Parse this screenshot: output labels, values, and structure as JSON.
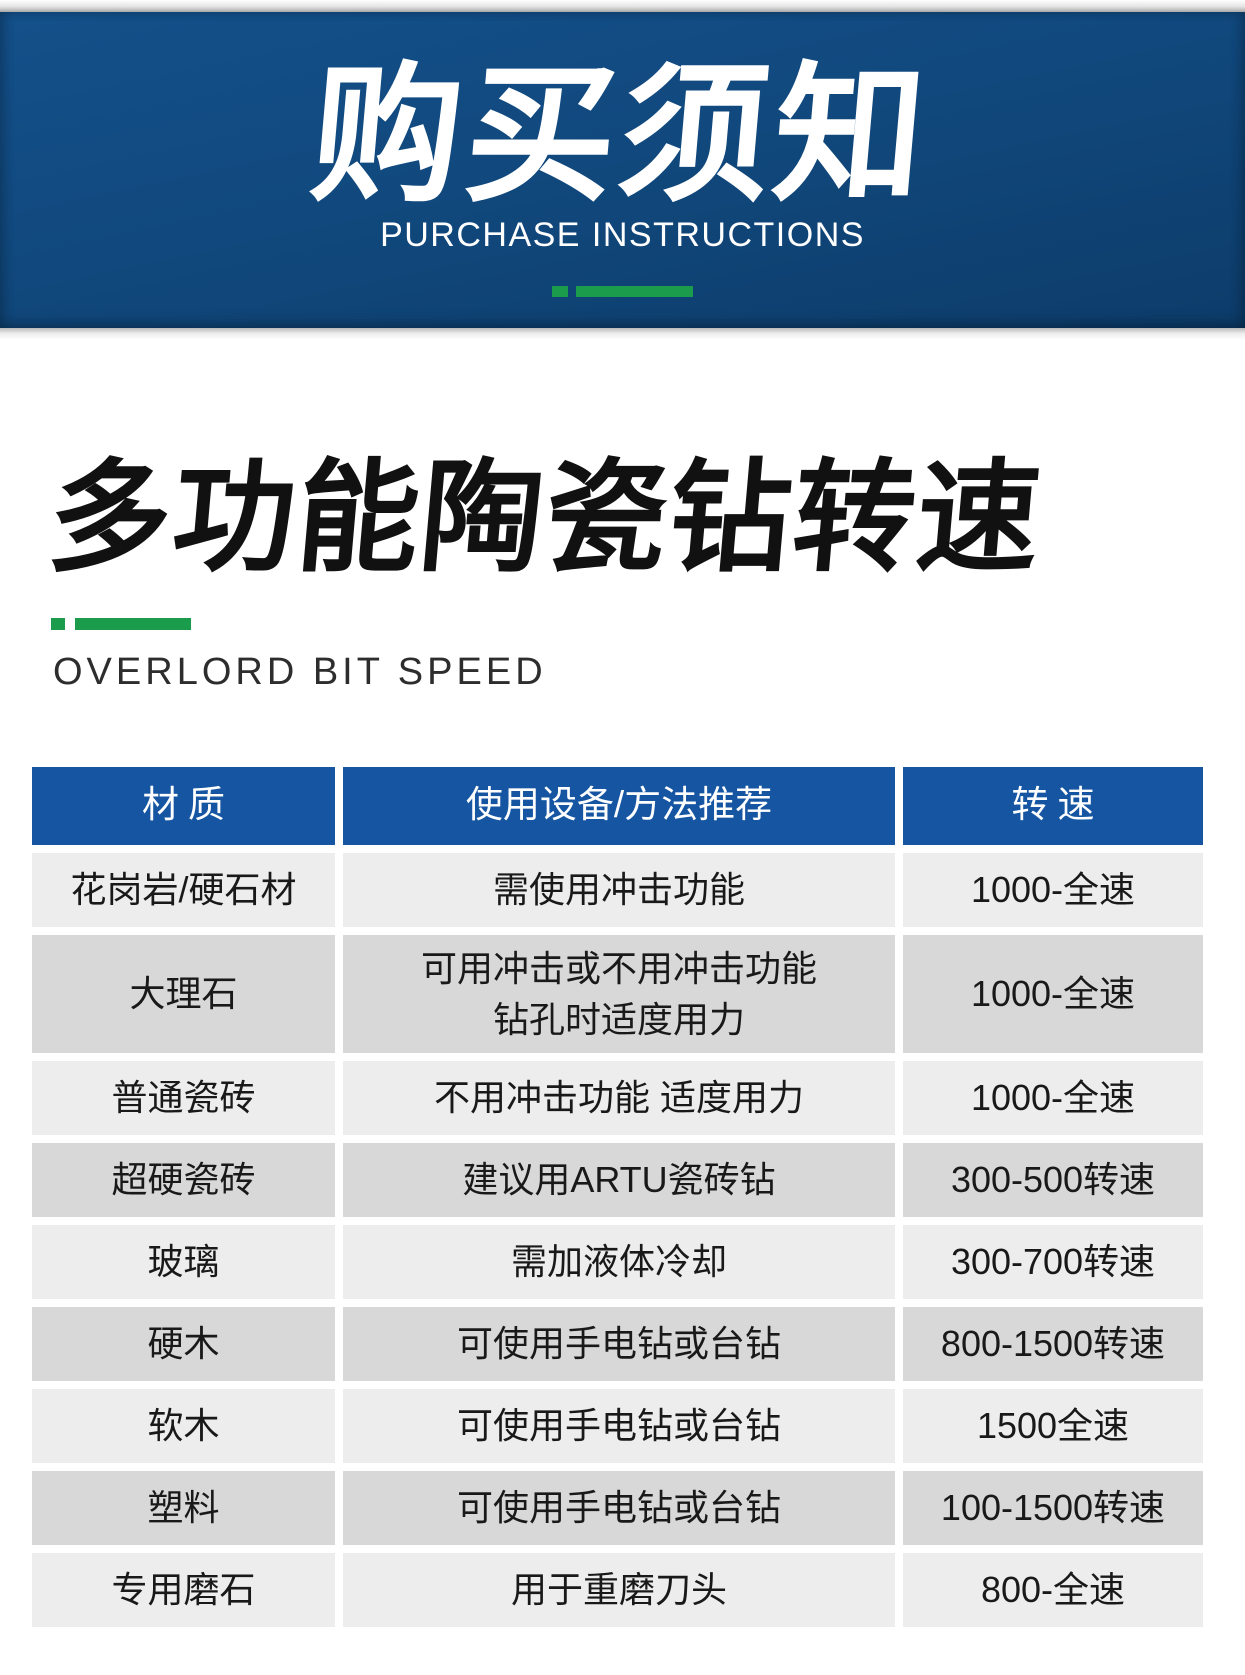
{
  "banner": {
    "title": "购买须知",
    "subtitle": "PURCHASE INSTRUCTIONS"
  },
  "section": {
    "title": "多功能陶瓷钻转速",
    "subtitle": "OVERLORD BIT SPEED"
  },
  "table": {
    "headers": [
      "材质",
      "使用设备/方法推荐",
      "转速"
    ],
    "rows": [
      [
        "花岗岩/硬石材",
        "需使用冲击功能",
        "1000-全速"
      ],
      [
        "大理石",
        "可用冲击或不用冲击功能\n钻孔时适度用力",
        "1000-全速"
      ],
      [
        "普通瓷砖",
        "不用冲击功能 适度用力",
        "1000-全速"
      ],
      [
        "超硬瓷砖",
        "建议用ARTU瓷砖钻",
        "300-500转速"
      ],
      [
        "玻璃",
        "需加液体冷却",
        "300-700转速"
      ],
      [
        "硬木",
        "可使用手电钻或台钻",
        "800-1500转速"
      ],
      [
        "软木",
        "可使用手电钻或台钻",
        "1500全速"
      ],
      [
        "塑料",
        "可使用手电钻或台钻",
        "100-1500转速"
      ],
      [
        "专用磨石",
        "用于重磨刀头",
        "800-全速"
      ]
    ]
  },
  "colors": {
    "banner-top": "#14508a",
    "banner-bottom": "#0d3c6a",
    "header-blue": "#1555a2",
    "green": "#1b9c4c",
    "row-light": "#ededed",
    "row-dark": "#d8d8d8"
  }
}
